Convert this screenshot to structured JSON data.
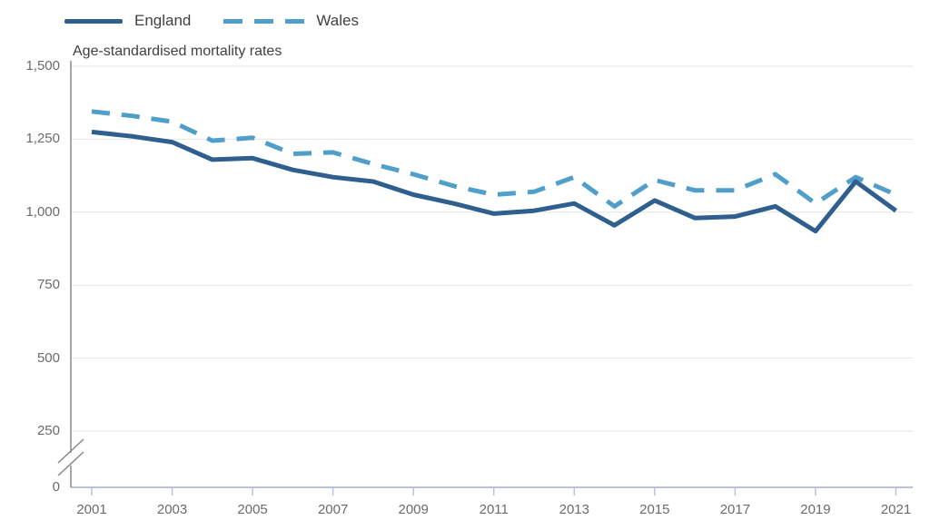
{
  "legend": {
    "items": [
      {
        "label": "England",
        "swatch": "solid-line"
      },
      {
        "label": "Wales",
        "swatch": "dashed-line"
      }
    ]
  },
  "chart_data": {
    "type": "line",
    "title": "Age-standardised mortality rates",
    "xlabel": "",
    "ylabel": "",
    "x": [
      2001,
      2002,
      2003,
      2004,
      2005,
      2006,
      2007,
      2008,
      2009,
      2010,
      2011,
      2012,
      2013,
      2014,
      2015,
      2016,
      2017,
      2018,
      2019,
      2020,
      2021
    ],
    "series": [
      {
        "name": "England",
        "color": "#2e5f8e",
        "line_style": "solid",
        "values": [
          1275,
          1260,
          1240,
          1180,
          1185,
          1145,
          1120,
          1105,
          1060,
          1030,
          995,
          1005,
          1030,
          955,
          1040,
          980,
          985,
          1020,
          935,
          1105,
          1005
        ]
      },
      {
        "name": "Wales",
        "color": "#4f9fca",
        "line_style": "dashed",
        "values": [
          1345,
          1330,
          1310,
          1245,
          1255,
          1200,
          1205,
          1165,
          1130,
          1090,
          1060,
          1070,
          1120,
          1020,
          1110,
          1075,
          1075,
          1130,
          1030,
          1120,
          1060
        ]
      }
    ],
    "ylim": [
      0,
      1500
    ],
    "axis_break_below": 250,
    "grid": "horizontal",
    "legend_position": "top-left",
    "yticks": {
      "values": [
        1500,
        1250,
        1000,
        750,
        500,
        250,
        0
      ],
      "labels": [
        "1,500",
        "1,250",
        "1,000",
        "750",
        "500",
        "250",
        "0"
      ]
    },
    "xticks": {
      "values": [
        2001,
        2003,
        2005,
        2007,
        2009,
        2011,
        2013,
        2015,
        2017,
        2019,
        2021
      ],
      "labels": [
        "2001",
        "2003",
        "2005",
        "2007",
        "2009",
        "2011",
        "2013",
        "2015",
        "2017",
        "2019",
        "2021"
      ]
    },
    "colors": {
      "grid_line": "#e4e4e4",
      "y_axis": "#8a8a8a",
      "x_baseline": "#b9c3dc",
      "tick_label": "#6b6b6b",
      "title_text": "#414042"
    }
  }
}
